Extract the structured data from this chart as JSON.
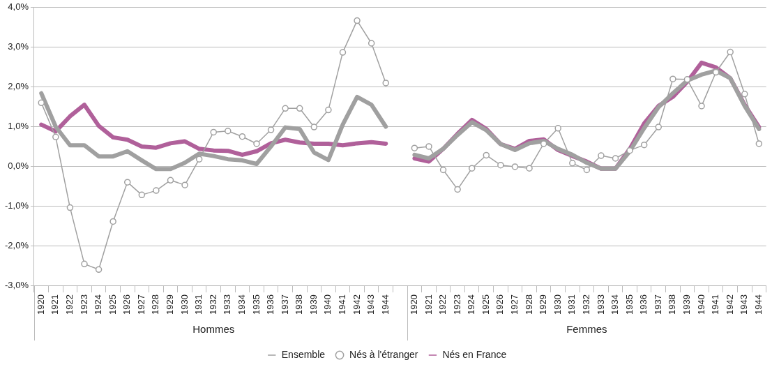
{
  "chart_data": {
    "type": "line",
    "categories": [
      "1920",
      "1921",
      "1922",
      "1923",
      "1924",
      "1925",
      "1926",
      "1927",
      "1928",
      "1929",
      "1930",
      "1931",
      "1932",
      "1933",
      "1934",
      "1935",
      "1936",
      "1937",
      "1938",
      "1939",
      "1940",
      "1941",
      "1942",
      "1943",
      "1944",
      null,
      "1920",
      "1921",
      "1922",
      "1923",
      "1924",
      "1925",
      "1926",
      "1927",
      "1928",
      "1929",
      "1930",
      "1931",
      "1932",
      "1933",
      "1934",
      "1935",
      "1936",
      "1937",
      "1938",
      "1939",
      "1940",
      "1941",
      "1942",
      "1943",
      "1944"
    ],
    "series": [
      {
        "name": "Ensemble",
        "color": "#a0a0a0",
        "marker": "none",
        "values": [
          1.84,
          1.0,
          0.53,
          0.53,
          0.25,
          0.25,
          0.38,
          0.15,
          -0.07,
          -0.07,
          0.09,
          0.32,
          0.26,
          0.18,
          0.15,
          0.06,
          0.5,
          0.98,
          0.94,
          0.35,
          0.16,
          1.05,
          1.75,
          1.55,
          1.0,
          null,
          0.29,
          0.2,
          0.44,
          0.79,
          1.11,
          0.91,
          0.56,
          0.41,
          0.58,
          0.64,
          0.44,
          0.29,
          0.09,
          -0.06,
          -0.06,
          0.38,
          0.96,
          1.49,
          1.84,
          2.16,
          2.31,
          2.41,
          2.22,
          1.52,
          0.94
        ]
      },
      {
        "name": "Nés à l'étranger",
        "color": "#a0a0a0",
        "marker": "circle",
        "values": [
          1.6,
          0.74,
          -1.04,
          -2.46,
          -2.6,
          -1.39,
          -0.4,
          -0.72,
          -0.61,
          -0.35,
          -0.47,
          0.18,
          0.86,
          0.89,
          0.75,
          0.57,
          0.92,
          1.46,
          1.46,
          0.99,
          1.42,
          2.87,
          3.67,
          3.1,
          2.1,
          null,
          0.46,
          0.5,
          -0.09,
          -0.58,
          -0.05,
          0.28,
          0.03,
          -0.01,
          -0.05,
          0.57,
          0.96,
          0.08,
          -0.09,
          0.27,
          0.2,
          0.4,
          0.54,
          0.99,
          2.2,
          2.19,
          1.52,
          2.37,
          2.88,
          1.82,
          0.57
        ]
      },
      {
        "name": "Nés en France",
        "color": "#b0609a",
        "marker": "none",
        "values": [
          1.05,
          0.88,
          1.26,
          1.55,
          1.02,
          0.73,
          0.67,
          0.5,
          0.47,
          0.58,
          0.63,
          0.44,
          0.4,
          0.39,
          0.29,
          0.38,
          0.58,
          0.67,
          0.6,
          0.57,
          0.57,
          0.53,
          0.58,
          0.61,
          0.57,
          null,
          0.2,
          0.12,
          0.44,
          0.82,
          1.17,
          0.94,
          0.56,
          0.44,
          0.64,
          0.68,
          0.41,
          0.26,
          0.12,
          -0.06,
          -0.06,
          0.44,
          1.08,
          1.52,
          1.75,
          2.13,
          2.61,
          2.49,
          2.22,
          1.55,
          0.99
        ]
      }
    ],
    "ylim": [
      -3,
      4
    ],
    "yticks": [
      {
        "value": -3,
        "label": "-3,0%"
      },
      {
        "value": -2,
        "label": "-2,0%"
      },
      {
        "value": -1,
        "label": "-1,0%"
      },
      {
        "value": 0,
        "label": "0,0%"
      },
      {
        "value": 1,
        "label": "1,0%"
      },
      {
        "value": 2,
        "label": "2,0%"
      },
      {
        "value": 3,
        "label": "3,0%"
      },
      {
        "value": 4,
        "label": "4,0%"
      }
    ],
    "grid": "y",
    "legend": "bottom",
    "annotations": [
      "Hommes",
      "Femmes"
    ]
  }
}
